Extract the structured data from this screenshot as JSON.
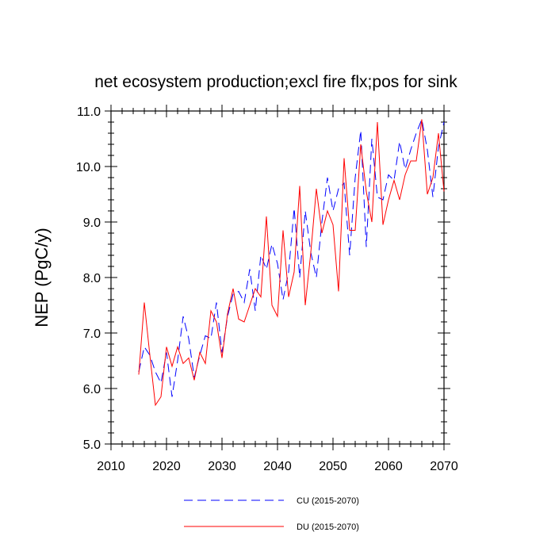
{
  "chart_data": {
    "type": "line",
    "title": "net ecosystem production;excl fire flx;pos for sink",
    "xlabel": "",
    "ylabel": "NEP  (PgC/y)",
    "xlim": [
      2010,
      2070
    ],
    "ylim": [
      5.0,
      11.0
    ],
    "xticks": [
      2010,
      2020,
      2030,
      2040,
      2050,
      2060,
      2070
    ],
    "xtick_labels": [
      "2010",
      "2020",
      "2030",
      "2040",
      "2050",
      "2060",
      "2070"
    ],
    "yticks": [
      5.0,
      6.0,
      7.0,
      8.0,
      9.0,
      10.0,
      11.0
    ],
    "ytick_labels": [
      "5.0",
      "6.0",
      "7.0",
      "8.0",
      "9.0",
      "10.0",
      "11.0"
    ],
    "x": [
      2015,
      2016,
      2017,
      2018,
      2019,
      2020,
      2021,
      2022,
      2023,
      2024,
      2025,
      2026,
      2027,
      2028,
      2029,
      2030,
      2031,
      2032,
      2033,
      2034,
      2035,
      2036,
      2037,
      2038,
      2039,
      2040,
      2041,
      2042,
      2043,
      2044,
      2045,
      2046,
      2047,
      2048,
      2049,
      2050,
      2051,
      2052,
      2053,
      2054,
      2055,
      2056,
      2057,
      2058,
      2059,
      2060,
      2061,
      2062,
      2063,
      2064,
      2065,
      2066,
      2067,
      2068,
      2069,
      2070
    ],
    "series": [
      {
        "name": "CU (2015-2070)",
        "color": "#0000ff",
        "dash": "dashed",
        "values": [
          6.3,
          6.75,
          6.6,
          6.3,
          6.1,
          6.65,
          5.85,
          6.5,
          7.3,
          6.9,
          6.2,
          6.6,
          6.95,
          6.9,
          7.55,
          6.65,
          7.3,
          7.7,
          7.75,
          7.55,
          8.15,
          7.4,
          8.4,
          8.15,
          8.6,
          8.25,
          7.6,
          8.1,
          9.25,
          8.0,
          9.2,
          8.45,
          8.0,
          9.0,
          9.8,
          9.2,
          9.6,
          9.7,
          8.4,
          9.8,
          10.65,
          8.55,
          10.5,
          9.45,
          9.4,
          9.85,
          9.75,
          10.45,
          9.95,
          10.3,
          10.6,
          10.85,
          10.3,
          9.45,
          10.35,
          10.8
        ]
      },
      {
        "name": "DU (2015-2070)",
        "color": "#ff0000",
        "dash": "solid",
        "values": [
          6.25,
          7.55,
          6.6,
          5.7,
          5.85,
          6.75,
          6.4,
          6.75,
          6.45,
          6.55,
          6.15,
          6.65,
          6.45,
          7.4,
          7.2,
          6.55,
          7.35,
          7.8,
          7.25,
          7.2,
          7.5,
          7.8,
          7.65,
          9.1,
          7.5,
          7.3,
          8.85,
          7.65,
          8.1,
          9.65,
          7.5,
          8.45,
          9.6,
          8.8,
          9.2,
          8.95,
          7.75,
          10.15,
          8.85,
          8.85,
          10.4,
          9.55,
          9.0,
          10.8,
          8.95,
          9.4,
          9.75,
          9.4,
          9.85,
          10.1,
          10.1,
          10.85,
          9.5,
          9.8,
          10.6,
          9.55
        ]
      }
    ]
  }
}
